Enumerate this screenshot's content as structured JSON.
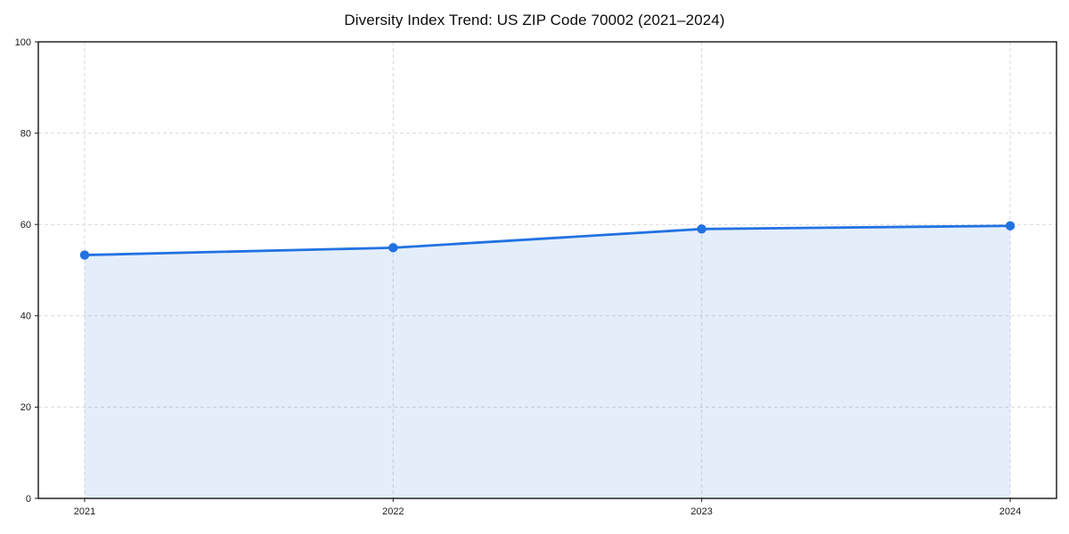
{
  "chart_data": {
    "type": "area",
    "title": "Diversity Index Trend: US ZIP Code 70002 (2021–2024)",
    "categories": [
      "2021",
      "2022",
      "2023",
      "2024"
    ],
    "series": [
      {
        "name": "Diversity Index",
        "values": [
          53.3,
          54.9,
          59.0,
          59.7
        ]
      }
    ],
    "xlabel": "",
    "ylabel": "",
    "ylim": [
      0,
      100
    ],
    "yticks": [
      0,
      20,
      40,
      60,
      80,
      100
    ],
    "grid": true,
    "grid_style": "dashed",
    "legend_position": "none",
    "line_color": "#2272e2",
    "fill_opacity": 0.12,
    "marker": "circle",
    "frame": "full-box"
  }
}
